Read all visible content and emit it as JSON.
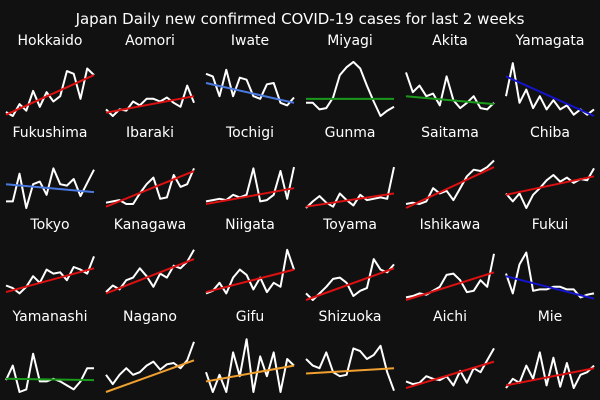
{
  "chart_data": {
    "type": "line",
    "title": "Japan Daily new confirmed COVID-19 cases for last 2 weeks",
    "days": 14,
    "ylim": [
      0,
      1
    ],
    "grid": false,
    "colors": {
      "background": "#111111",
      "text": "#ffffff",
      "data_line": "#ffffff",
      "trend_up_strong": "#dd1111",
      "trend_up_weak": "#f0a030",
      "trend_flat": "#1a9a1a",
      "trend_down_weak": "#4a7ae0",
      "trend_down_strong": "#1414d0"
    },
    "panels": [
      {
        "name": "Hokkaido",
        "trend": "trend_up_strong",
        "values": [
          0.06,
          0.0,
          0.18,
          0.08,
          0.38,
          0.14,
          0.36,
          0.22,
          0.3,
          0.68,
          0.64,
          0.26,
          0.72,
          0.62
        ],
        "trend_line": [
          0.02,
          0.62
        ]
      },
      {
        "name": "Aomori",
        "trend": "trend_up_strong",
        "values": [
          0.1,
          0.0,
          0.1,
          0.08,
          0.22,
          0.16,
          0.26,
          0.26,
          0.22,
          0.28,
          0.2,
          0.14,
          0.46,
          0.2
        ],
        "trend_line": [
          0.05,
          0.3
        ]
      },
      {
        "name": "Iwate",
        "trend": "trend_down_weak",
        "values": [
          0.64,
          0.6,
          0.3,
          0.7,
          0.3,
          0.58,
          0.55,
          0.3,
          0.26,
          0.48,
          0.5,
          0.2,
          0.16,
          0.28
        ],
        "trend_line": [
          0.5,
          0.2
        ]
      },
      {
        "name": "Miyagi",
        "trend": "trend_flat",
        "values": [
          0.2,
          0.2,
          0.1,
          0.12,
          0.28,
          0.62,
          0.74,
          0.82,
          0.72,
          0.46,
          0.22,
          0.0,
          0.08,
          0.14
        ],
        "trend_line": [
          0.26,
          0.26
        ]
      },
      {
        "name": "Akita",
        "trend": "trend_flat",
        "values": [
          0.66,
          0.36,
          0.46,
          0.3,
          0.34,
          0.16,
          0.6,
          0.24,
          0.12,
          0.2,
          0.3,
          0.12,
          0.1,
          0.2
        ],
        "trend_line": [
          0.3,
          0.18
        ]
      },
      {
        "name": "Yamagata",
        "trend": "trend_down_strong",
        "values": [
          0.3,
          0.8,
          0.2,
          0.4,
          0.12,
          0.3,
          0.1,
          0.24,
          0.1,
          0.16,
          0.02,
          0.1,
          0.02,
          0.1
        ],
        "trend_line": [
          0.6,
          0.0
        ]
      },
      {
        "name": "Fukushima",
        "trend": "trend_down_weak",
        "values": [
          0.1,
          0.1,
          0.52,
          0.0,
          0.36,
          0.4,
          0.2,
          0.6,
          0.36,
          0.34,
          0.44,
          0.18,
          0.38,
          0.58
        ],
        "trend_line": [
          0.36,
          0.24
        ]
      },
      {
        "name": "Ibaraki",
        "trend": "trend_up_strong",
        "values": [
          0.08,
          0.1,
          0.12,
          0.06,
          0.06,
          0.22,
          0.36,
          0.46,
          0.14,
          0.16,
          0.5,
          0.32,
          0.36,
          0.6
        ],
        "trend_line": [
          0.02,
          0.56
        ]
      },
      {
        "name": "Tochigi",
        "trend": "trend_up_strong",
        "values": [
          0.1,
          0.12,
          0.14,
          0.12,
          0.2,
          0.16,
          0.2,
          0.6,
          0.1,
          0.12,
          0.2,
          0.56,
          0.14,
          0.62
        ],
        "trend_line": [
          0.06,
          0.3
        ]
      },
      {
        "name": "Gunma",
        "trend": "trend_up_strong",
        "values": [
          0.0,
          0.1,
          0.18,
          0.08,
          0.02,
          0.22,
          0.12,
          0.04,
          0.2,
          0.12,
          0.14,
          0.16,
          0.14,
          0.62
        ],
        "trend_line": [
          0.02,
          0.22
        ]
      },
      {
        "name": "Saitama",
        "trend": "trend_up_strong",
        "values": [
          0.06,
          0.08,
          0.06,
          0.1,
          0.3,
          0.22,
          0.26,
          0.12,
          0.3,
          0.48,
          0.58,
          0.56,
          0.62,
          0.72
        ],
        "trend_line": [
          0.0,
          0.62
        ]
      },
      {
        "name": "Chiba",
        "trend": "trend_up_strong",
        "values": [
          0.22,
          0.1,
          0.22,
          0.0,
          0.2,
          0.3,
          0.42,
          0.5,
          0.4,
          0.46,
          0.38,
          0.44,
          0.42,
          0.6
        ],
        "trend_line": [
          0.2,
          0.48
        ]
      },
      {
        "name": "Tokyo",
        "trend": "trend_up_strong",
        "values": [
          0.22,
          0.18,
          0.1,
          0.2,
          0.36,
          0.26,
          0.46,
          0.4,
          0.42,
          0.3,
          0.5,
          0.46,
          0.4,
          0.66
        ],
        "trend_line": [
          0.12,
          0.48
        ]
      },
      {
        "name": "Kanagawa",
        "trend": "trend_up_strong",
        "values": [
          0.12,
          0.22,
          0.16,
          0.3,
          0.34,
          0.48,
          0.36,
          0.2,
          0.4,
          0.34,
          0.52,
          0.48,
          0.58,
          0.76
        ],
        "trend_line": [
          0.1,
          0.62
        ]
      },
      {
        "name": "Niigata",
        "trend": "trend_up_strong",
        "values": [
          0.1,
          0.14,
          0.26,
          0.1,
          0.34,
          0.46,
          0.38,
          0.16,
          0.34,
          0.12,
          0.26,
          0.2,
          0.76,
          0.46
        ],
        "trend_line": [
          0.12,
          0.46
        ]
      },
      {
        "name": "Toyama",
        "trend": "trend_up_strong",
        "values": [
          0.1,
          0.0,
          0.1,
          0.2,
          0.32,
          0.34,
          0.26,
          0.06,
          0.14,
          0.18,
          0.62,
          0.46,
          0.42,
          0.54
        ],
        "trend_line": [
          0.0,
          0.48
        ]
      },
      {
        "name": "Ishikawa",
        "trend": "trend_up_strong",
        "values": [
          0.04,
          0.06,
          0.1,
          0.08,
          0.14,
          0.2,
          0.38,
          0.4,
          0.3,
          0.12,
          0.14,
          0.3,
          0.2,
          0.7
        ],
        "trend_line": [
          0.0,
          0.42
        ]
      },
      {
        "name": "Fukui",
        "trend": "trend_down_strong",
        "values": [
          0.4,
          0.1,
          0.54,
          0.72,
          0.14,
          0.16,
          0.16,
          0.2,
          0.2,
          0.16,
          0.16,
          0.04,
          0.08,
          0.1
        ],
        "trend_line": [
          0.36,
          0.02
        ]
      },
      {
        "name": "Yamanashi",
        "trend": "trend_flat",
        "values": [
          0.18,
          0.4,
          0.0,
          0.04,
          0.58,
          0.16,
          0.16,
          0.2,
          0.16,
          0.1,
          0.04,
          0.16,
          0.36,
          0.36
        ],
        "trend_line": [
          0.2,
          0.18
        ]
      },
      {
        "name": "Nagano",
        "trend": "trend_up_weak",
        "values": [
          0.26,
          0.12,
          0.26,
          0.36,
          0.26,
          0.3,
          0.4,
          0.46,
          0.34,
          0.42,
          0.44,
          0.36,
          0.48,
          0.76
        ],
        "trend_line": [
          0.0,
          0.48
        ]
      },
      {
        "name": "Gifu",
        "trend": "trend_up_weak",
        "values": [
          0.3,
          0.0,
          0.26,
          0.0,
          0.6,
          0.24,
          0.8,
          0.0,
          0.54,
          0.24,
          0.6,
          0.0,
          0.5,
          0.4
        ],
        "trend_line": [
          0.16,
          0.4
        ]
      },
      {
        "name": "Shizuoka",
        "trend": "trend_up_weak",
        "values": [
          0.5,
          0.4,
          0.36,
          0.6,
          0.3,
          0.24,
          0.26,
          0.66,
          0.62,
          0.5,
          0.56,
          0.7,
          0.3,
          0.02
        ],
        "trend_line": [
          0.28,
          0.36
        ]
      },
      {
        "name": "Aichi",
        "trend": "trend_up_strong",
        "values": [
          0.16,
          0.12,
          0.14,
          0.24,
          0.2,
          0.18,
          0.24,
          0.1,
          0.32,
          0.14,
          0.36,
          0.3,
          0.48,
          0.66
        ],
        "trend_line": [
          0.06,
          0.46
        ]
      },
      {
        "name": "Mie",
        "trend": "trend_up_strong",
        "values": [
          0.06,
          0.2,
          0.14,
          0.4,
          0.2,
          0.6,
          0.1,
          0.52,
          0.08,
          0.44,
          0.06,
          0.26,
          0.3,
          0.4
        ],
        "trend_line": [
          0.1,
          0.36
        ]
      }
    ]
  }
}
